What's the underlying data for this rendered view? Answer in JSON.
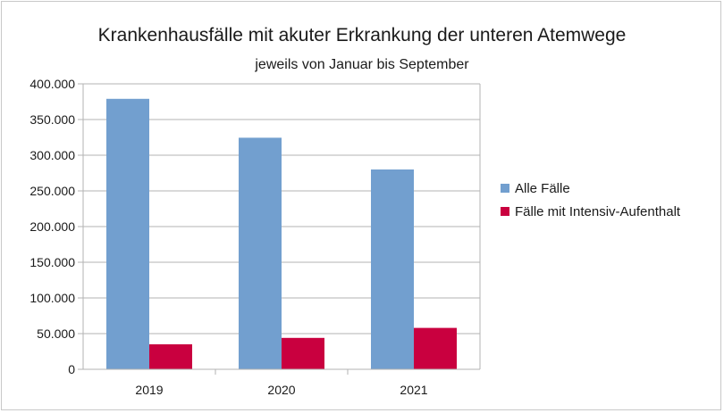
{
  "chart_data": {
    "type": "bar",
    "title": "Krankenhausfälle mit akuter Erkrankung der unteren Atemwege",
    "subtitle": "jeweils von Januar bis September",
    "categories": [
      "2019",
      "2020",
      "2021"
    ],
    "series": [
      {
        "name": "Alle Fälle",
        "color": "#729fcf",
        "values": [
          379000,
          324500,
          280000
        ]
      },
      {
        "name": "Fälle mit Intensiv-Aufenthalt",
        "color": "#c9003f",
        "values": [
          35000,
          44000,
          58000
        ]
      }
    ],
    "ylim": [
      0,
      400000
    ],
    "yticks": [
      0,
      50000,
      100000,
      150000,
      200000,
      250000,
      300000,
      350000,
      400000
    ],
    "ytick_labels": [
      "0",
      "50.000",
      "100.000",
      "150.000",
      "200.000",
      "250.000",
      "300.000",
      "350.000",
      "400.000"
    ],
    "grid": true,
    "legend_position": "right"
  }
}
